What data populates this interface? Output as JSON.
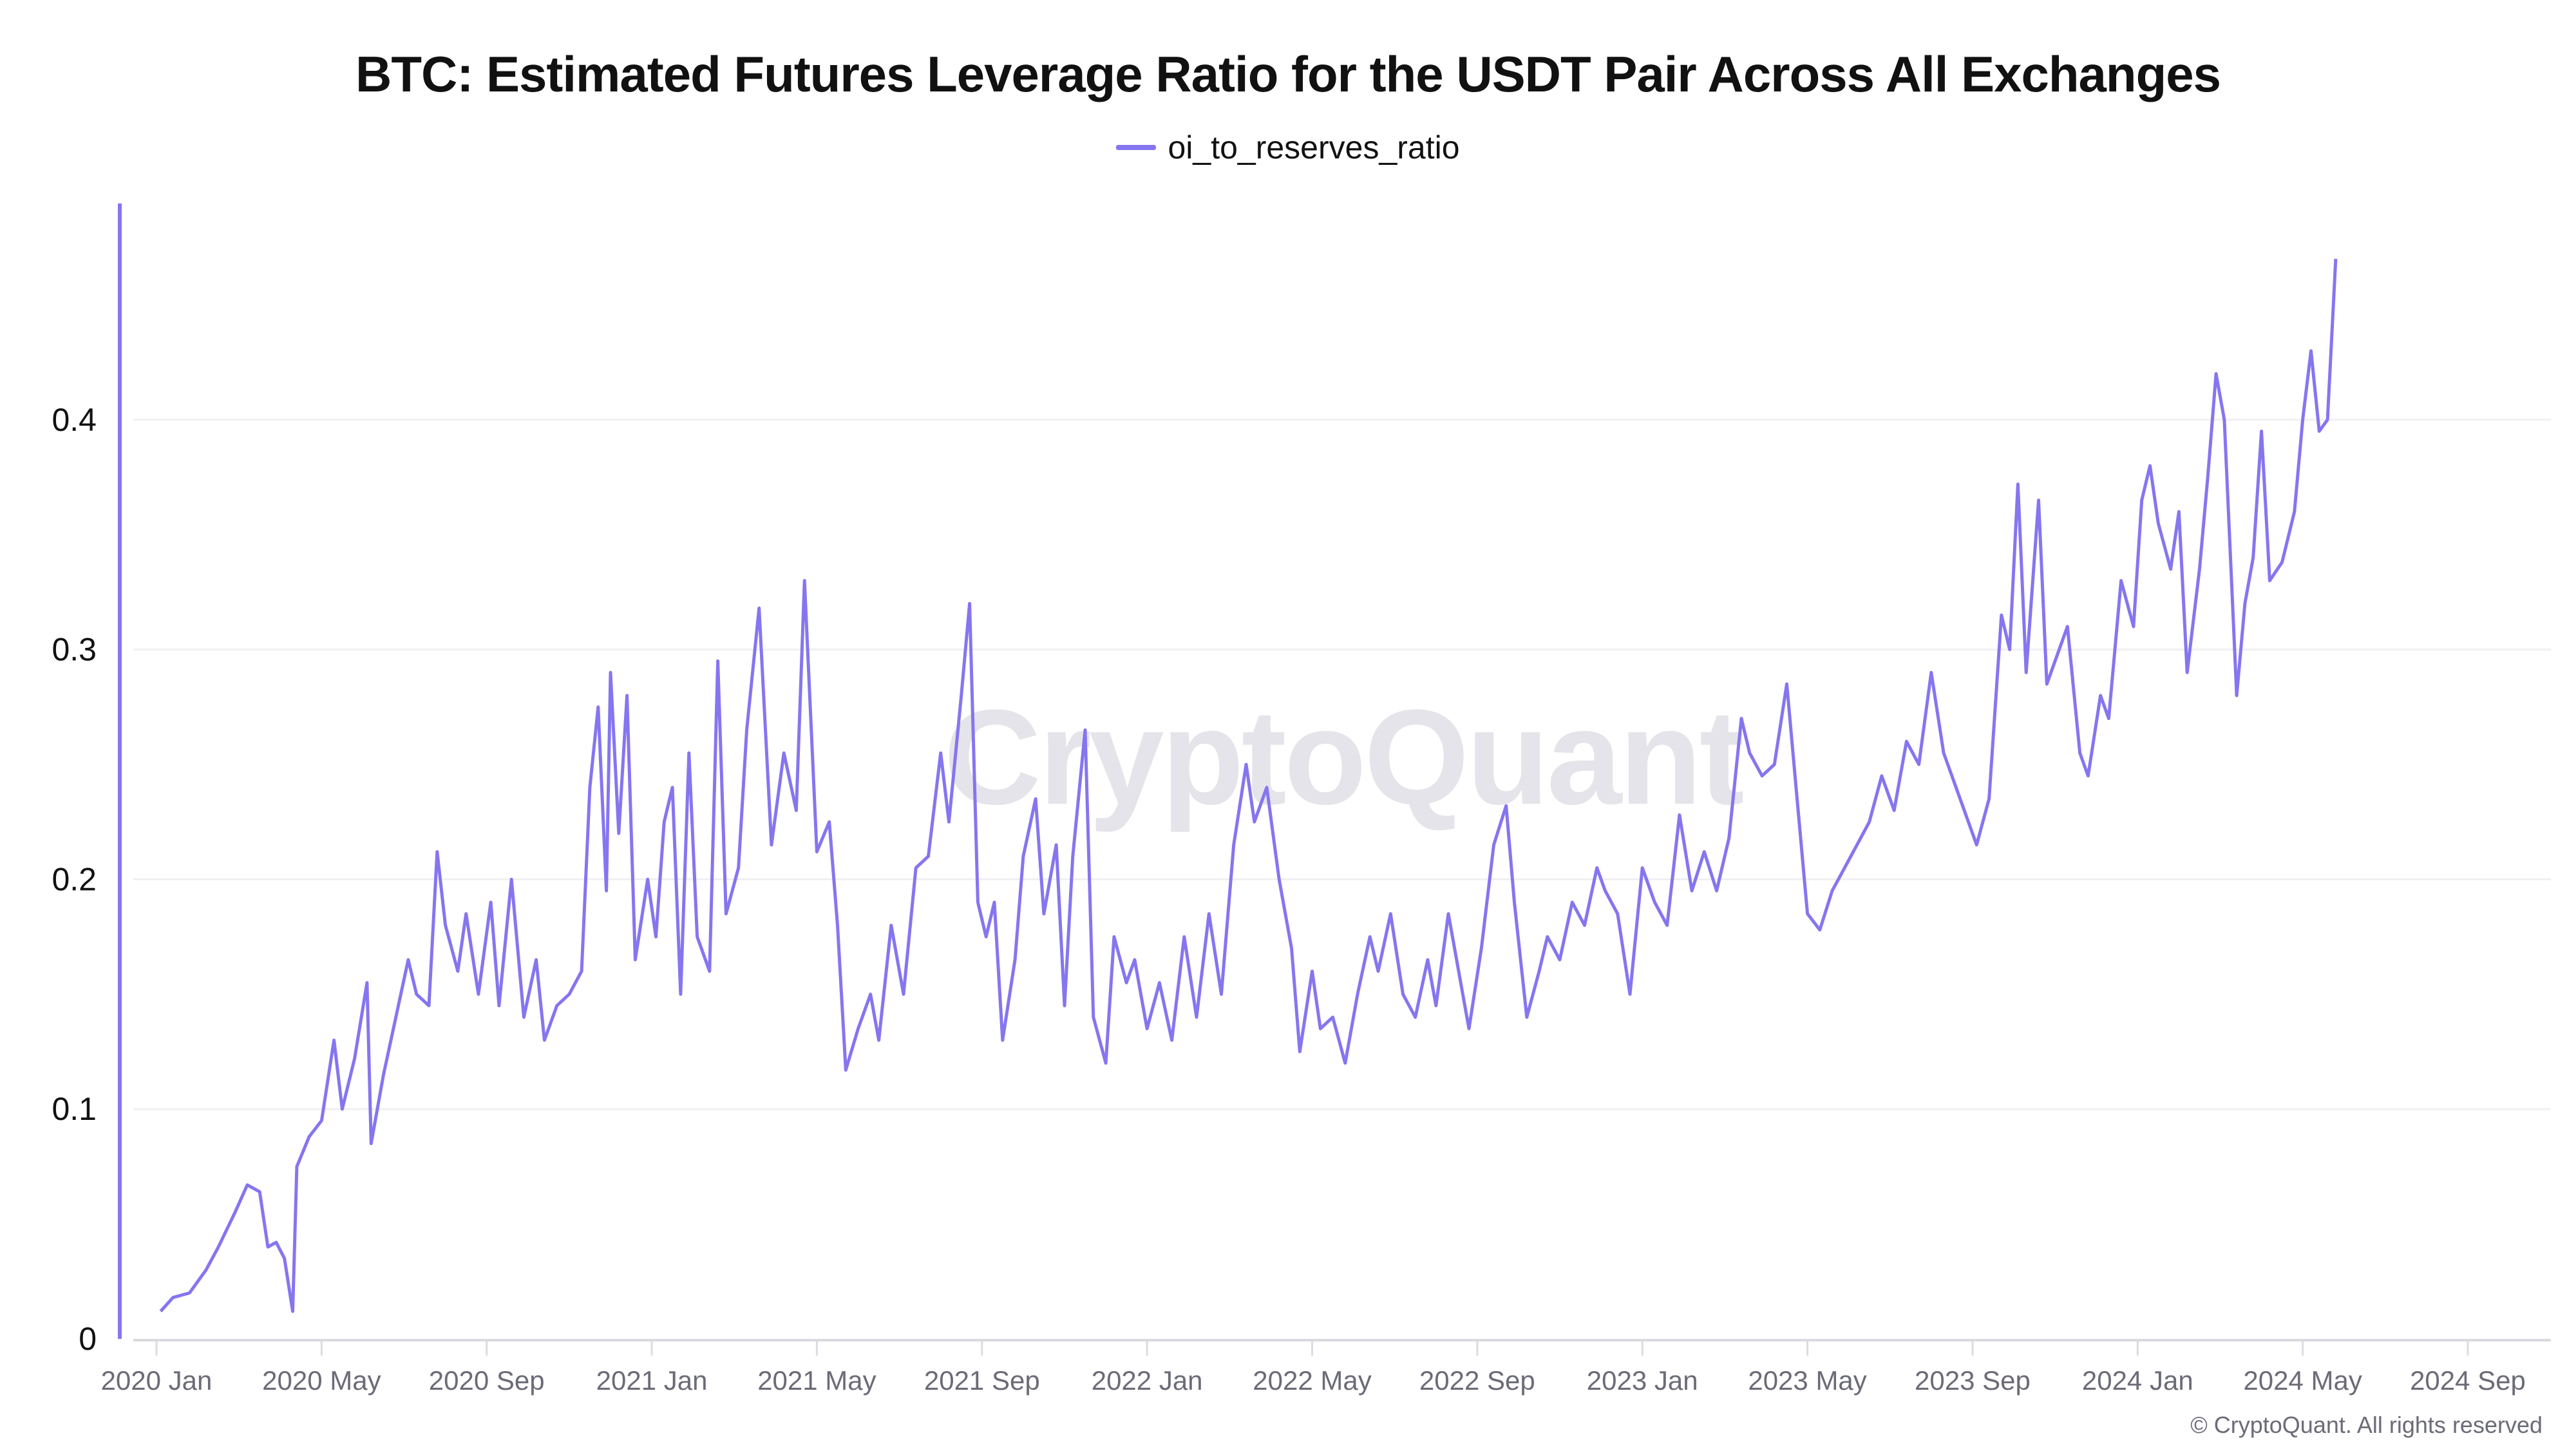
{
  "header": {
    "title": "BTC: Estimated Futures Leverage Ratio for the USDT Pair Across All Exchanges"
  },
  "legend": {
    "items": [
      {
        "label": "oi_to_reserves_ratio",
        "color": "#8675f0"
      }
    ]
  },
  "watermark": "CryptoQuant",
  "footer": {
    "copyright": "© CryptoQuant. All rights reserved"
  },
  "chart_data": {
    "type": "line",
    "title": "BTC: Estimated Futures Leverage Ratio for the USDT Pair Across All Exchanges",
    "xlabel": "",
    "ylabel": "",
    "ylim": [
      0,
      0.5
    ],
    "yticks": [
      0,
      0.1,
      0.2,
      0.3,
      0.4
    ],
    "ytick_labels": [
      "0",
      "0.1",
      "0.2",
      "0.3",
      "0.4"
    ],
    "xtick_labels": [
      "2020 Jan",
      "2020 May",
      "2020 Sep",
      "2021 Jan",
      "2021 May",
      "2021 Sep",
      "2022 Jan",
      "2022 May",
      "2022 Sep",
      "2023 Jan",
      "2023 May",
      "2023 Sep",
      "2024 Jan",
      "2024 May",
      "2024 Sep"
    ],
    "xtick_months_since_2020_01": [
      0,
      4,
      8,
      12,
      16,
      20,
      24,
      28,
      32,
      36,
      40,
      44,
      48,
      52,
      56
    ],
    "xlim_months_since_2020_01": [
      -0.9,
      58.3
    ],
    "x_unit": "months since 2020-01-01",
    "grid": "horizontal",
    "legend_position": "top-center",
    "line_color": "#8675f0",
    "series": [
      {
        "name": "oi_to_reserves_ratio",
        "x": [
          0.1,
          0.4,
          0.8,
          1.2,
          1.5,
          1.9,
          2.2,
          2.5,
          2.7,
          2.9,
          3.1,
          3.3,
          3.4,
          3.7,
          4.0,
          4.3,
          4.5,
          4.8,
          5.1,
          5.2,
          5.5,
          5.8,
          6.1,
          6.3,
          6.6,
          6.8,
          7.0,
          7.3,
          7.5,
          7.8,
          8.1,
          8.3,
          8.6,
          8.9,
          9.2,
          9.4,
          9.7,
          10.0,
          10.3,
          10.5,
          10.7,
          10.9,
          11.0,
          11.2,
          11.4,
          11.6,
          11.9,
          12.1,
          12.3,
          12.5,
          12.7,
          12.9,
          13.1,
          13.4,
          13.6,
          13.8,
          14.1,
          14.3,
          14.6,
          14.9,
          15.2,
          15.5,
          15.7,
          16.0,
          16.3,
          16.5,
          16.7,
          17.0,
          17.3,
          17.5,
          17.8,
          18.1,
          18.4,
          18.7,
          19.0,
          19.2,
          19.5,
          19.7,
          19.9,
          20.1,
          20.3,
          20.5,
          20.8,
          21.0,
          21.3,
          21.5,
          21.8,
          22.0,
          22.2,
          22.5,
          22.7,
          23.0,
          23.2,
          23.5,
          23.7,
          24.0,
          24.3,
          24.6,
          24.9,
          25.2,
          25.5,
          25.8,
          26.1,
          26.4,
          26.6,
          26.9,
          27.2,
          27.5,
          27.7,
          28.0,
          28.2,
          28.5,
          28.8,
          29.1,
          29.4,
          29.6,
          29.9,
          30.2,
          30.5,
          30.8,
          31.0,
          31.3,
          31.5,
          31.8,
          32.1,
          32.4,
          32.7,
          32.9,
          33.2,
          33.5,
          33.7,
          34.0,
          34.3,
          34.6,
          34.9,
          35.1,
          35.4,
          35.7,
          36.0,
          36.3,
          36.6,
          36.9,
          37.2,
          37.5,
          37.8,
          38.1,
          38.4,
          38.6,
          38.9,
          39.2,
          39.5,
          39.7,
          40.0,
          40.3,
          40.6,
          40.9,
          41.2,
          41.5,
          41.8,
          42.1,
          42.4,
          42.7,
          43.0,
          43.3,
          43.5,
          43.8,
          44.1,
          44.4,
          44.7,
          44.9,
          45.1,
          45.3,
          45.6,
          45.8,
          46.1,
          46.3,
          46.6,
          46.8,
          47.1,
          47.3,
          47.6,
          47.9,
          48.1,
          48.3,
          48.5,
          48.8,
          49.0,
          49.2,
          49.5,
          49.7,
          49.9,
          50.1,
          50.4,
          50.6,
          50.8,
          51.0,
          51.2,
          51.5,
          51.8,
          52.0,
          52.2,
          52.4,
          52.6,
          52.8
        ],
        "values": [
          0.012,
          0.018,
          0.02,
          0.03,
          0.04,
          0.055,
          0.067,
          0.064,
          0.04,
          0.042,
          0.035,
          0.012,
          0.075,
          0.088,
          0.095,
          0.13,
          0.1,
          0.122,
          0.155,
          0.085,
          0.115,
          0.14,
          0.165,
          0.15,
          0.145,
          0.212,
          0.18,
          0.16,
          0.185,
          0.15,
          0.19,
          0.145,
          0.2,
          0.14,
          0.165,
          0.13,
          0.145,
          0.15,
          0.16,
          0.24,
          0.275,
          0.195,
          0.29,
          0.22,
          0.28,
          0.165,
          0.2,
          0.175,
          0.225,
          0.24,
          0.15,
          0.255,
          0.175,
          0.16,
          0.295,
          0.185,
          0.205,
          0.265,
          0.318,
          0.215,
          0.255,
          0.23,
          0.33,
          0.212,
          0.225,
          0.18,
          0.117,
          0.135,
          0.15,
          0.13,
          0.18,
          0.15,
          0.205,
          0.21,
          0.255,
          0.225,
          0.28,
          0.32,
          0.19,
          0.175,
          0.19,
          0.13,
          0.165,
          0.21,
          0.235,
          0.185,
          0.215,
          0.145,
          0.21,
          0.265,
          0.14,
          0.12,
          0.175,
          0.155,
          0.165,
          0.135,
          0.155,
          0.13,
          0.175,
          0.14,
          0.185,
          0.15,
          0.215,
          0.25,
          0.225,
          0.24,
          0.2,
          0.17,
          0.125,
          0.16,
          0.135,
          0.14,
          0.12,
          0.15,
          0.175,
          0.16,
          0.185,
          0.15,
          0.14,
          0.165,
          0.145,
          0.185,
          0.165,
          0.135,
          0.17,
          0.215,
          0.232,
          0.19,
          0.14,
          0.16,
          0.175,
          0.165,
          0.19,
          0.18,
          0.205,
          0.195,
          0.185,
          0.15,
          0.205,
          0.19,
          0.18,
          0.228,
          0.195,
          0.212,
          0.195,
          0.218,
          0.27,
          0.255,
          0.245,
          0.25,
          0.285,
          0.245,
          0.185,
          0.178,
          0.195,
          0.205,
          0.215,
          0.225,
          0.245,
          0.23,
          0.26,
          0.25,
          0.29,
          0.255,
          0.245,
          0.23,
          0.215,
          0.235,
          0.315,
          0.3,
          0.372,
          0.29,
          0.365,
          0.285,
          0.3,
          0.31,
          0.255,
          0.245,
          0.28,
          0.27,
          0.33,
          0.31,
          0.365,
          0.38,
          0.355,
          0.335,
          0.36,
          0.29,
          0.335,
          0.375,
          0.42,
          0.4,
          0.28,
          0.32,
          0.34,
          0.395,
          0.33,
          0.338,
          0.36,
          0.4,
          0.43,
          0.395,
          0.4,
          0.47
        ]
      }
    ]
  }
}
